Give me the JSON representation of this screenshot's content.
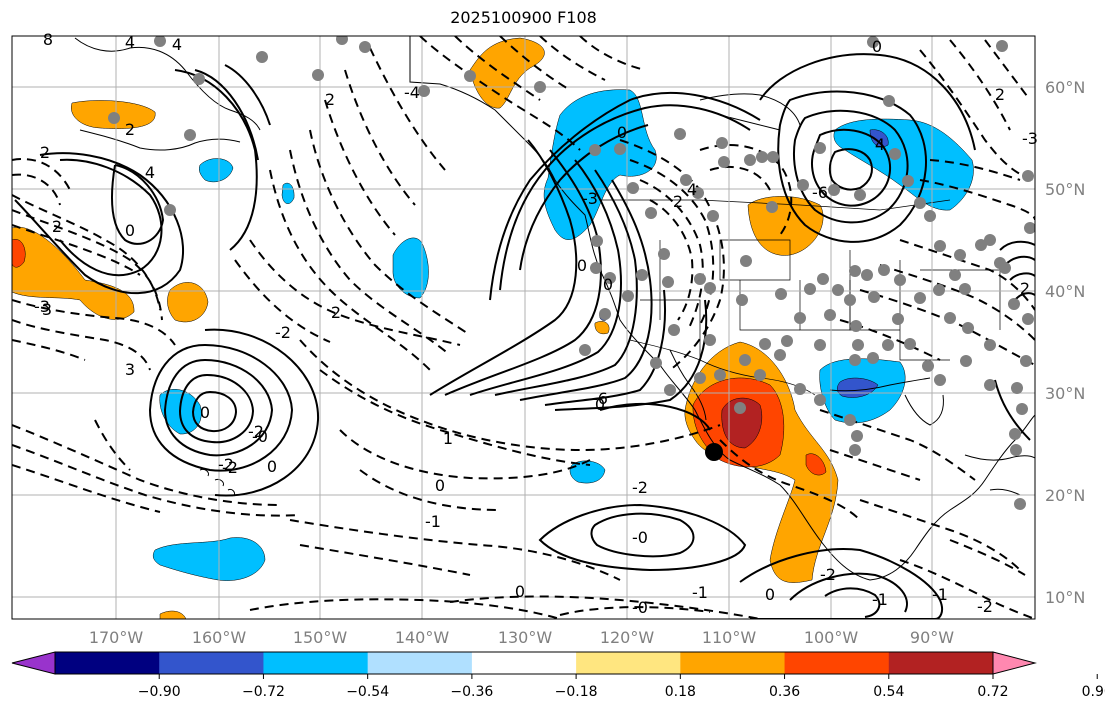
{
  "title": "2025100900 F108",
  "map": {
    "lon_labels": [
      "170°W",
      "160°W",
      "150°W",
      "140°W",
      "130°W",
      "120°W",
      "110°W",
      "100°W",
      "90°W"
    ],
    "lat_labels": [
      "60°N",
      "50°N",
      "40°N",
      "30°N",
      "20°N",
      "10°N"
    ]
  },
  "colorbar": {
    "colors": [
      "#9933cc",
      "#000080",
      "#3355cc",
      "#00bfff",
      "#b0e0ff",
      "#ffffff",
      "#ffe680",
      "#ffa500",
      "#ff4500",
      "#b22222",
      "#ff88b0"
    ],
    "tick_labels": [
      "−0.90",
      "−0.72",
      "−0.54",
      "−0.36",
      "−0.18",
      "0.18",
      "0.36",
      "0.54",
      "0.72",
      "0.90"
    ]
  },
  "contour_labels": [
    "8",
    "4",
    "4",
    "2",
    "2",
    "4",
    "2",
    "0",
    "3",
    "3",
    "0",
    "-2",
    "-2",
    "0",
    "2",
    "-2",
    "2",
    "-4",
    "-6",
    "0",
    "-3",
    "2",
    "0",
    "4",
    "0",
    "-6",
    "4",
    "0",
    "2",
    "-3",
    "2",
    "1",
    "0",
    "-1",
    "-2",
    "-0",
    "0",
    "-1",
    "0",
    "-0",
    "-2",
    "-1",
    "-1",
    "-2",
    "0",
    "-0",
    "-2",
    "-3"
  ],
  "palette": {
    "land_outline": "#000000",
    "grid": "#b0b0b0",
    "station": "#808080"
  }
}
